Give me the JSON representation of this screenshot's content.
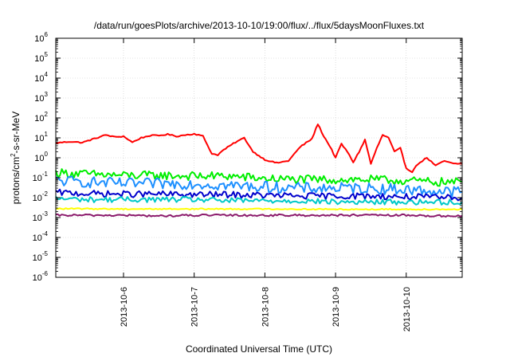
{
  "chart_data": {
    "type": "line",
    "title": "/data/run/goesPlots/archive/2013-10-10/19:00/flux/../flux/5daysMoonFluxes.txt",
    "xlabel": "Coordinated Universal Time (UTC)",
    "ylabel": {
      "prefix": "protons/cm",
      "sup": "2",
      "suffix": "-s-sr-MeV"
    },
    "y_scale": "log",
    "ylim": [
      1e-06,
      1000000
    ],
    "y_ticks": [
      {
        "base": "10",
        "exp": "-6",
        "value": -6
      },
      {
        "base": "10",
        "exp": "-5",
        "value": -5
      },
      {
        "base": "10",
        "exp": "-4",
        "value": -4
      },
      {
        "base": "10",
        "exp": "-3",
        "value": -3
      },
      {
        "base": "10",
        "exp": "-2",
        "value": -2
      },
      {
        "base": "10",
        "exp": "-1",
        "value": -1
      },
      {
        "base": "10",
        "exp": "0",
        "value": 0
      },
      {
        "base": "10",
        "exp": "1",
        "value": 1
      },
      {
        "base": "10",
        "exp": "2",
        "value": 2
      },
      {
        "base": "10",
        "exp": "3",
        "value": 3
      },
      {
        "base": "10",
        "exp": "4",
        "value": 4
      },
      {
        "base": "10",
        "exp": "5",
        "value": 5
      },
      {
        "base": "10",
        "exp": "6",
        "value": 6
      }
    ],
    "xlim": [
      "2013-10-05 01:00",
      "2013-10-10 19:00"
    ],
    "x_ticks": [
      {
        "label": "2013-10-6",
        "value": "2013-10-06 00:00"
      },
      {
        "label": "2013-10-7",
        "value": "2013-10-07 00:00"
      },
      {
        "label": "2013-10-8",
        "value": "2013-10-08 00:00"
      },
      {
        "label": "2013-10-9",
        "value": "2013-10-09 00:00"
      },
      {
        "label": "2013-10-10",
        "value": "2013-10-10 00:00"
      }
    ],
    "grid": true,
    "series": [
      {
        "color": "#ff0000",
        "x": [
          "2013-10-05 01:00",
          "2013-10-05 06:00",
          "2013-10-05 10:00",
          "2013-10-05 14:00",
          "2013-10-05 18:00",
          "2013-10-05 21:00",
          "2013-10-06 00:00",
          "2013-10-06 03:00",
          "2013-10-06 06:00",
          "2013-10-06 09:00",
          "2013-10-06 12:00",
          "2013-10-06 15:00",
          "2013-10-06 18:00",
          "2013-10-06 21:00",
          "2013-10-07 00:00",
          "2013-10-07 03:00",
          "2013-10-07 06:00",
          "2013-10-07 08:00",
          "2013-10-07 10:00",
          "2013-10-07 14:00",
          "2013-10-07 17:00",
          "2013-10-07 20:00",
          "2013-10-08 00:00",
          "2013-10-08 04:00",
          "2013-10-08 08:00",
          "2013-10-08 12:00",
          "2013-10-08 16:00",
          "2013-10-08 18:00",
          "2013-10-08 20:00",
          "2013-10-08 22:00",
          "2013-10-09 00:00",
          "2013-10-09 02:00",
          "2013-10-09 04:00",
          "2013-10-09 06:00",
          "2013-10-09 08:00",
          "2013-10-09 10:00",
          "2013-10-09 12:00",
          "2013-10-09 14:00",
          "2013-10-09 16:00",
          "2013-10-09 18:00",
          "2013-10-09 20:00",
          "2013-10-09 22:00",
          "2013-10-10 00:00",
          "2013-10-10 02:00",
          "2013-10-10 04:00",
          "2013-10-10 07:00",
          "2013-10-10 10:00",
          "2013-10-10 13:00",
          "2013-10-10 16:00",
          "2013-10-10 19:00"
        ],
        "values": [
          5.5,
          6.5,
          5.8,
          9,
          14,
          11,
          12,
          6,
          10,
          13,
          13,
          15,
          12,
          14,
          16,
          12,
          1.6,
          1.4,
          2.5,
          6,
          10,
          2,
          0.8,
          0.55,
          0.7,
          3.5,
          9,
          50,
          12,
          4,
          1,
          5,
          2,
          0.6,
          2,
          8,
          0.5,
          3,
          14,
          10,
          2,
          3,
          0.3,
          0.2,
          0.5,
          1,
          0.4,
          0.7,
          0.5,
          0.5
        ]
      },
      {
        "color": "#00ee00",
        "x": [
          "2013-10-05 01:00",
          "2013-10-05 12:00",
          "2013-10-06 00:00",
          "2013-10-06 12:00",
          "2013-10-07 00:00",
          "2013-10-07 12:00",
          "2013-10-08 00:00",
          "2013-10-08 12:00",
          "2013-10-09 00:00",
          "2013-10-09 12:00",
          "2013-10-10 00:00",
          "2013-10-10 12:00",
          "2013-10-10 19:00"
        ],
        "values": [
          0.18,
          0.15,
          0.13,
          0.13,
          0.12,
          0.12,
          0.09,
          0.08,
          0.08,
          0.08,
          0.07,
          0.06,
          0.06
        ]
      },
      {
        "color": "#1e90ff",
        "x": [
          "2013-10-05 01:00",
          "2013-10-05 12:00",
          "2013-10-06 00:00",
          "2013-10-06 12:00",
          "2013-10-07 00:00",
          "2013-10-07 12:00",
          "2013-10-08 00:00",
          "2013-10-08 12:00",
          "2013-10-09 00:00",
          "2013-10-09 12:00",
          "2013-10-10 00:00",
          "2013-10-10 12:00",
          "2013-10-10 19:00"
        ],
        "values": [
          0.07,
          0.06,
          0.05,
          0.05,
          0.05,
          0.04,
          0.035,
          0.03,
          0.03,
          0.03,
          0.025,
          0.02,
          0.02
        ]
      },
      {
        "color": "#0000cc",
        "x": [
          "2013-10-05 01:00",
          "2013-10-05 12:00",
          "2013-10-06 00:00",
          "2013-10-06 12:00",
          "2013-10-07 00:00",
          "2013-10-07 12:00",
          "2013-10-08 00:00",
          "2013-10-08 12:00",
          "2013-10-09 00:00",
          "2013-10-09 12:00",
          "2013-10-10 00:00",
          "2013-10-10 12:00",
          "2013-10-10 19:00"
        ],
        "values": [
          0.018,
          0.016,
          0.015,
          0.015,
          0.014,
          0.014,
          0.013,
          0.012,
          0.012,
          0.012,
          0.011,
          0.01,
          0.01
        ]
      },
      {
        "color": "#00c8c8",
        "x": [
          "2013-10-05 01:00",
          "2013-10-05 12:00",
          "2013-10-06 00:00",
          "2013-10-06 12:00",
          "2013-10-07 00:00",
          "2013-10-07 12:00",
          "2013-10-08 00:00",
          "2013-10-08 12:00",
          "2013-10-09 00:00",
          "2013-10-09 12:00",
          "2013-10-10 00:00",
          "2013-10-10 12:00",
          "2013-10-10 19:00"
        ],
        "values": [
          0.009,
          0.008,
          0.008,
          0.008,
          0.008,
          0.007,
          0.007,
          0.007,
          0.006,
          0.006,
          0.006,
          0.006,
          0.006
        ]
      },
      {
        "color": "#ffff00",
        "x": [
          "2013-10-05 01:00",
          "2013-10-06 00:00",
          "2013-10-07 00:00",
          "2013-10-08 00:00",
          "2013-10-09 00:00",
          "2013-10-10 00:00",
          "2013-10-10 19:00"
        ],
        "values": [
          0.0028,
          0.0027,
          0.0027,
          0.0027,
          0.0026,
          0.0026,
          0.0026
        ]
      },
      {
        "color": "#8b1a6b",
        "x": [
          "2013-10-05 01:00",
          "2013-10-06 00:00",
          "2013-10-06 12:00",
          "2013-10-07 00:00",
          "2013-10-08 00:00",
          "2013-10-09 00:00",
          "2013-10-10 00:00",
          "2013-10-10 12:00",
          "2013-10-10 19:00"
        ],
        "values": [
          0.0013,
          0.0013,
          0.0012,
          0.0013,
          0.0013,
          0.0013,
          0.0013,
          0.0012,
          0.0012
        ]
      }
    ]
  }
}
